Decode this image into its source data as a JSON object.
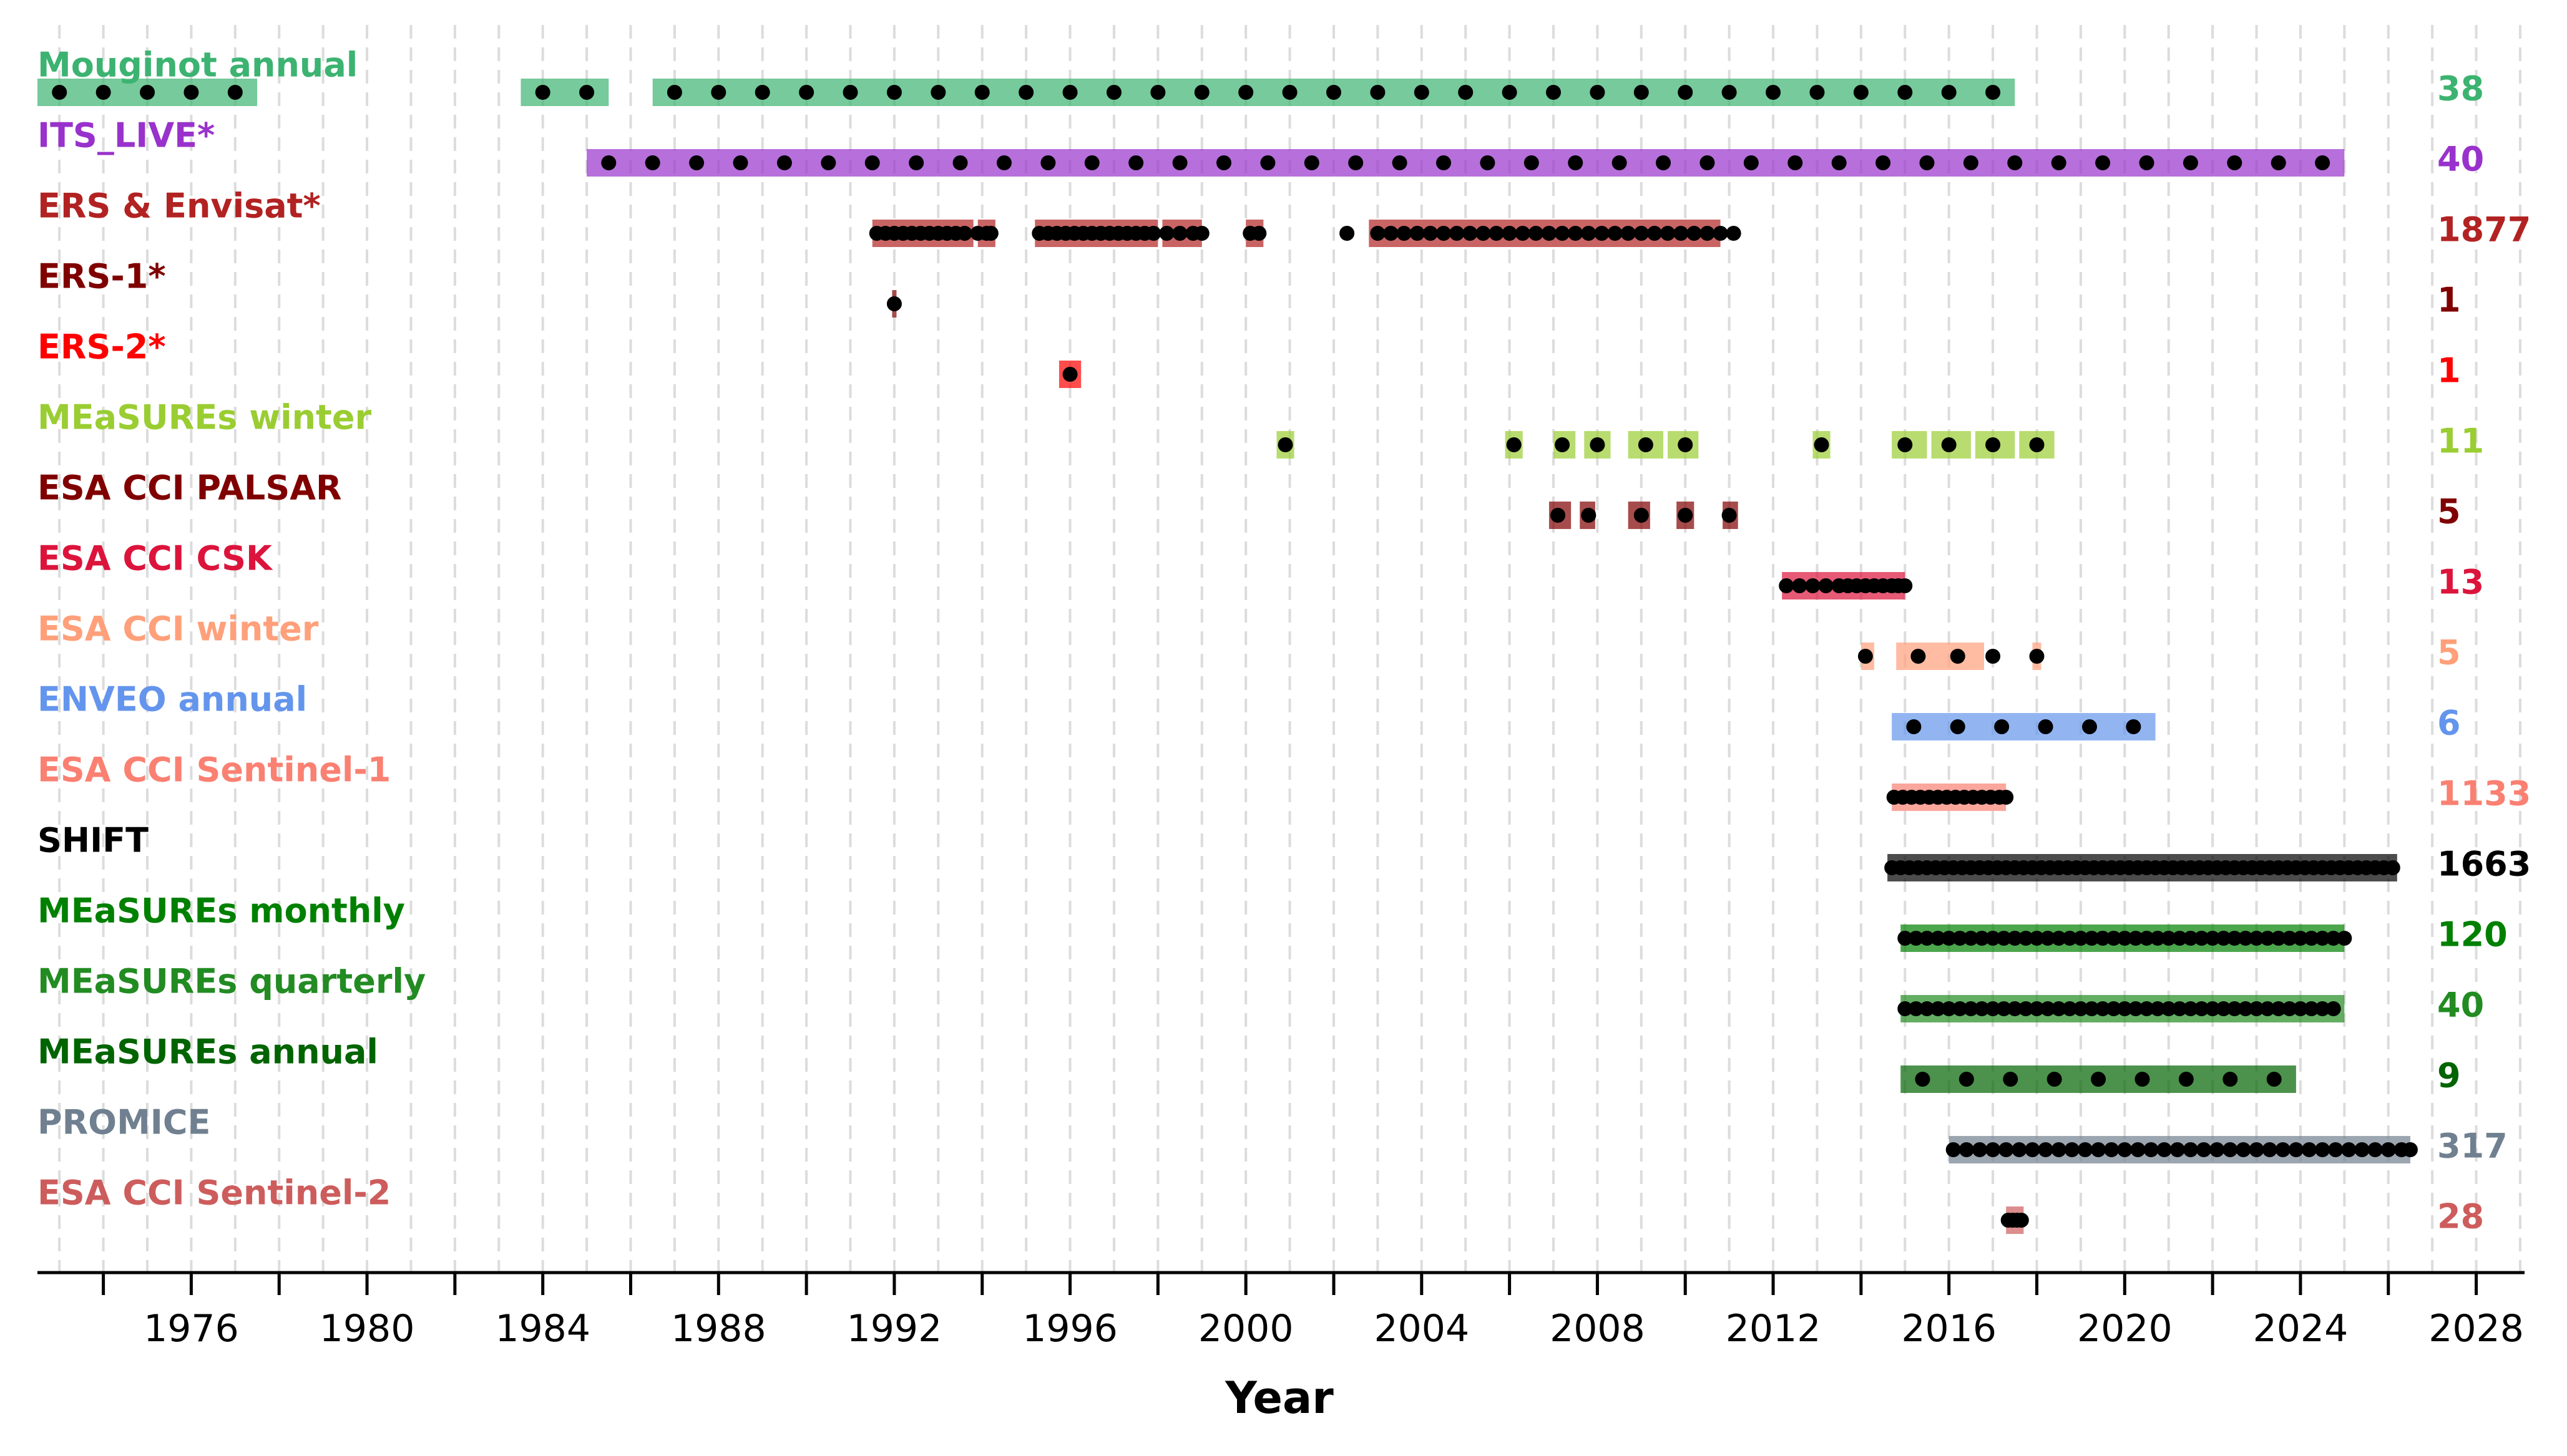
{
  "chart_data": {
    "type": "timeline",
    "title": "",
    "xlabel": "Year",
    "ylabel": "",
    "xlim": [
      1972.5,
      2029.1
    ],
    "xticks": [
      1976,
      1980,
      1984,
      1988,
      1992,
      1996,
      2000,
      2004,
      2008,
      2012,
      2016,
      2020,
      2024,
      2028
    ],
    "grid": "vertical dashed, yearly",
    "legend": "none",
    "series": [
      {
        "name": "Mouginot annual",
        "color": "#3cb371",
        "count": "38",
        "spans": [
          [
            1972.5,
            1977.5
          ],
          [
            1983.5,
            1985.5
          ],
          [
            1986.5,
            2017.5
          ]
        ],
        "points": [
          1973,
          1974,
          1975,
          1976,
          1977,
          1984,
          1985,
          1987,
          1988,
          1989,
          1990,
          1991,
          1992,
          1993,
          1994,
          1995,
          1996,
          1997,
          1998,
          1999,
          2000,
          2001,
          2002,
          2003,
          2004,
          2005,
          2006,
          2007,
          2008,
          2009,
          2010,
          2011,
          2012,
          2013,
          2014,
          2015,
          2016,
          2017
        ]
      },
      {
        "name": "ITS_LIVE*",
        "color": "#9932cc",
        "count": "40",
        "spans": [
          [
            1985.0,
            2025.0
          ]
        ],
        "points": [
          1985.5,
          1986.5,
          1987.5,
          1988.5,
          1989.5,
          1990.5,
          1991.5,
          1992.5,
          1993.5,
          1994.5,
          1995.5,
          1996.5,
          1997.5,
          1998.5,
          1999.5,
          2000.5,
          2001.5,
          2002.5,
          2003.5,
          2004.5,
          2005.5,
          2006.5,
          2007.5,
          2008.5,
          2009.5,
          2010.5,
          2011.5,
          2012.5,
          2013.5,
          2014.5,
          2015.5,
          2016.5,
          2017.5,
          2018.5,
          2019.5,
          2020.5,
          2021.5,
          2022.5,
          2023.5,
          2024.5
        ]
      },
      {
        "name": "ERS & Envisat*",
        "color": "#b22222",
        "count": "1877",
        "spans": [
          [
            1991.5,
            1993.8
          ],
          [
            1993.9,
            1994.3
          ],
          [
            1995.2,
            1998.0
          ],
          [
            1998.1,
            1999.0
          ],
          [
            2000.0,
            2000.4
          ],
          [
            2002.8,
            2010.8
          ]
        ],
        "points": [
          1991.6,
          1991.8,
          1992.0,
          1992.2,
          1992.4,
          1992.6,
          1992.8,
          1993.0,
          1993.2,
          1993.4,
          1993.6,
          1993.9,
          1994.1,
          1994.2,
          1995.3,
          1995.5,
          1995.7,
          1995.9,
          1996.1,
          1996.3,
          1996.5,
          1996.7,
          1996.9,
          1997.1,
          1997.3,
          1997.5,
          1997.7,
          1997.9,
          1998.2,
          1998.5,
          1998.8,
          1999.0,
          2000.1,
          2000.3,
          2002.3,
          2003.0,
          2003.3,
          2003.6,
          2003.9,
          2004.2,
          2004.5,
          2004.8,
          2005.1,
          2005.4,
          2005.7,
          2006.0,
          2006.3,
          2006.6,
          2006.9,
          2007.2,
          2007.5,
          2007.8,
          2008.1,
          2008.4,
          2008.7,
          2009.0,
          2009.3,
          2009.6,
          2009.9,
          2010.2,
          2010.5,
          2010.8,
          2011.1
        ]
      },
      {
        "name": "ERS-1*",
        "color": "#800000",
        "count": "1",
        "spans": [
          [
            1991.95,
            1992.05
          ]
        ],
        "points": [
          1992.0
        ]
      },
      {
        "name": "ERS-2*",
        "color": "#ff0000",
        "count": "1",
        "spans": [
          [
            1995.75,
            1996.25
          ]
        ],
        "points": [
          1996.0
        ]
      },
      {
        "name": "MEaSUREs winter",
        "color": "#9acd32",
        "count": "11",
        "spans": [
          [
            2000.7,
            2001.1
          ],
          [
            2005.9,
            2006.3
          ],
          [
            2007.0,
            2007.5
          ],
          [
            2007.7,
            2008.3
          ],
          [
            2008.7,
            2009.5
          ],
          [
            2009.6,
            2010.3
          ],
          [
            2012.9,
            2013.3
          ],
          [
            2014.7,
            2015.5
          ],
          [
            2015.6,
            2016.5
          ],
          [
            2016.6,
            2017.5
          ],
          [
            2017.6,
            2018.4
          ]
        ],
        "points": [
          2000.9,
          2006.1,
          2007.2,
          2008.0,
          2009.1,
          2010.0,
          2013.1,
          2015.0,
          2016.0,
          2017.0,
          2018.0
        ]
      },
      {
        "name": "ESA CCI PALSAR",
        "color": "#800000",
        "count": "5",
        "spans": [
          [
            2006.9,
            2007.4
          ],
          [
            2007.6,
            2007.95
          ],
          [
            2008.7,
            2009.2
          ],
          [
            2009.8,
            2010.2
          ],
          [
            2010.85,
            2011.2
          ]
        ],
        "points": [
          2007.1,
          2007.8,
          2009.0,
          2010.0,
          2011.0
        ]
      },
      {
        "name": "ESA CCI CSK",
        "color": "#dc143c",
        "count": "13",
        "spans": [
          [
            2012.2,
            2015.0
          ]
        ],
        "points": [
          2012.3,
          2012.6,
          2012.9,
          2013.2,
          2013.5,
          2013.7,
          2013.9,
          2014.1,
          2014.3,
          2014.5,
          2014.7,
          2014.85,
          2015.0
        ]
      },
      {
        "name": "ESA CCI winter",
        "color": "#ffa07a",
        "count": "5",
        "spans": [
          [
            2014.0,
            2014.3
          ],
          [
            2014.8,
            2016.8
          ],
          [
            2017.9,
            2018.1
          ]
        ],
        "points": [
          2014.1,
          2015.3,
          2016.2,
          2017.0,
          2018.0
        ]
      },
      {
        "name": "ENVEO annual",
        "color": "#6495ed",
        "count": "6",
        "spans": [
          [
            2014.7,
            2020.7
          ]
        ],
        "points": [
          2015.2,
          2016.2,
          2017.2,
          2018.2,
          2019.2,
          2020.2
        ]
      },
      {
        "name": "ESA CCI Sentinel-1",
        "color": "#fa8072",
        "count": "1133",
        "spans": [
          [
            2014.7,
            2017.3
          ]
        ],
        "points": [
          2014.75,
          2014.95,
          2015.15,
          2015.35,
          2015.55,
          2015.75,
          2015.95,
          2016.15,
          2016.35,
          2016.55,
          2016.75,
          2016.95,
          2017.15,
          2017.3
        ]
      },
      {
        "name": "SHIFT",
        "color": "#000000",
        "count": "1663",
        "spans": [
          [
            2014.6,
            2026.2
          ]
        ],
        "points": [
          2014.7,
          2014.9,
          2015.1,
          2015.3,
          2015.5,
          2015.7,
          2015.9,
          2016.1,
          2016.3,
          2016.5,
          2016.7,
          2016.9,
          2017.1,
          2017.3,
          2017.5,
          2017.7,
          2017.9,
          2018.1,
          2018.3,
          2018.5,
          2018.7,
          2018.9,
          2019.1,
          2019.3,
          2019.5,
          2019.7,
          2019.9,
          2020.1,
          2020.3,
          2020.5,
          2020.7,
          2020.9,
          2021.1,
          2021.3,
          2021.5,
          2021.7,
          2021.9,
          2022.1,
          2022.3,
          2022.5,
          2022.7,
          2022.9,
          2023.1,
          2023.3,
          2023.5,
          2023.7,
          2023.9,
          2024.1,
          2024.3,
          2024.5,
          2024.7,
          2024.9,
          2025.1,
          2025.3,
          2025.5,
          2025.7,
          2025.9,
          2026.1
        ]
      },
      {
        "name": "MEaSUREs monthly",
        "color": "#008000",
        "count": "120",
        "spans": [
          [
            2014.9,
            2025.0
          ]
        ],
        "points": [
          2015.0,
          2015.25,
          2015.5,
          2015.75,
          2016.0,
          2016.25,
          2016.5,
          2016.75,
          2017.0,
          2017.25,
          2017.5,
          2017.75,
          2018.0,
          2018.25,
          2018.5,
          2018.75,
          2019.0,
          2019.25,
          2019.5,
          2019.75,
          2020.0,
          2020.25,
          2020.5,
          2020.75,
          2021.0,
          2021.25,
          2021.5,
          2021.75,
          2022.0,
          2022.25,
          2022.5,
          2022.75,
          2023.0,
          2023.25,
          2023.5,
          2023.75,
          2024.0,
          2024.25,
          2024.5,
          2024.75,
          2025.0
        ]
      },
      {
        "name": "MEaSUREs quarterly",
        "color": "#228b22",
        "count": "40",
        "spans": [
          [
            2014.9,
            2025.0
          ]
        ],
        "points": [
          2015.0,
          2015.25,
          2015.5,
          2015.75,
          2016.0,
          2016.25,
          2016.5,
          2016.75,
          2017.0,
          2017.25,
          2017.5,
          2017.75,
          2018.0,
          2018.25,
          2018.5,
          2018.75,
          2019.0,
          2019.25,
          2019.5,
          2019.75,
          2020.0,
          2020.25,
          2020.5,
          2020.75,
          2021.0,
          2021.25,
          2021.5,
          2021.75,
          2022.0,
          2022.25,
          2022.5,
          2022.75,
          2023.0,
          2023.25,
          2023.5,
          2023.75,
          2024.0,
          2024.25,
          2024.5,
          2024.75
        ]
      },
      {
        "name": "MEaSUREs annual",
        "color": "#006400",
        "count": "9",
        "spans": [
          [
            2014.9,
            2023.9
          ]
        ],
        "points": [
          2015.4,
          2016.4,
          2017.4,
          2018.4,
          2019.4,
          2020.4,
          2021.4,
          2022.4,
          2023.4
        ]
      },
      {
        "name": "PROMICE",
        "color": "#708090",
        "count": "317",
        "spans": [
          [
            2016.0,
            2026.5
          ]
        ],
        "points": [
          2016.1,
          2016.4,
          2016.7,
          2017.0,
          2017.3,
          2017.6,
          2017.9,
          2018.2,
          2018.5,
          2018.8,
          2019.1,
          2019.4,
          2019.7,
          2020.0,
          2020.3,
          2020.6,
          2020.9,
          2021.2,
          2021.5,
          2021.8,
          2022.1,
          2022.4,
          2022.7,
          2023.0,
          2023.3,
          2023.6,
          2023.9,
          2024.2,
          2024.5,
          2024.8,
          2025.1,
          2025.4,
          2025.7,
          2026.0,
          2026.3,
          2026.5
        ]
      },
      {
        "name": "ESA CCI Sentinel-2",
        "color": "#cd5c5c",
        "count": "28",
        "spans": [
          [
            2017.3,
            2017.7
          ]
        ],
        "points": [
          2017.35,
          2017.45,
          2017.55,
          2017.65
        ]
      }
    ]
  }
}
